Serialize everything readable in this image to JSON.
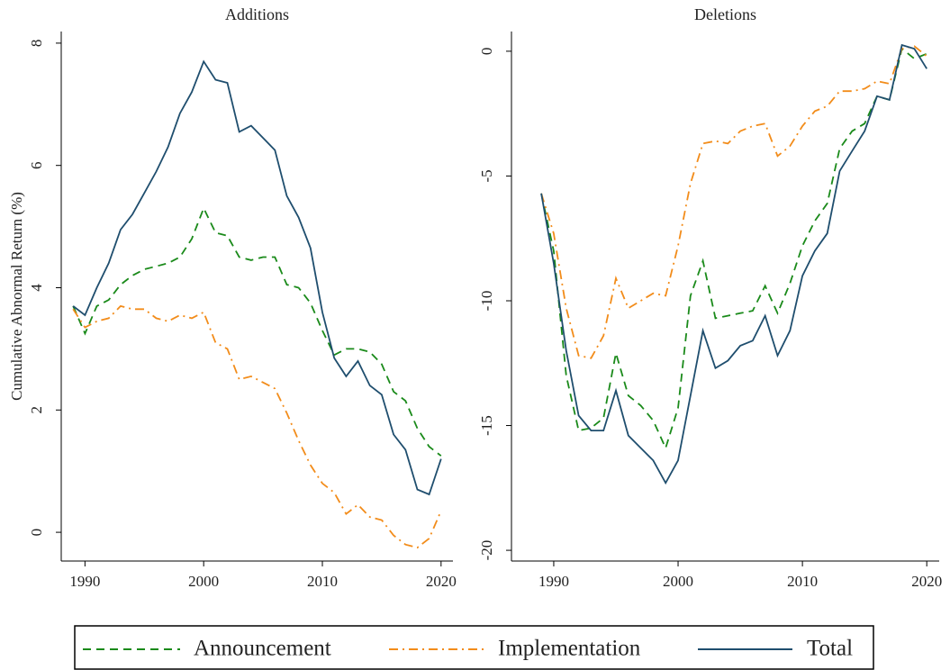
{
  "chart_data": [
    {
      "type": "line",
      "title": "Additions",
      "y_label": "Cumulative Abnormal Return (%)",
      "x": [
        1989,
        1990,
        1991,
        1992,
        1993,
        1994,
        1995,
        1996,
        1997,
        1998,
        1999,
        2000,
        2001,
        2002,
        2003,
        2004,
        2005,
        2006,
        2007,
        2008,
        2009,
        2010,
        2011,
        2012,
        2013,
        2014,
        2015,
        2016,
        2017,
        2018,
        2019,
        2020
      ],
      "xlim": [
        1988,
        2021
      ],
      "xticks": [
        1990,
        2000,
        2010,
        2020
      ],
      "ylim": [
        -0.47,
        8.19
      ],
      "yticks": [
        0,
        2,
        4,
        6,
        8
      ],
      "series": [
        {
          "name": "Announcement",
          "color": "#1a8a1a",
          "line_style": "dashed",
          "values": [
            3.7,
            3.25,
            3.7,
            3.8,
            4.05,
            4.2,
            4.3,
            4.35,
            4.4,
            4.5,
            4.8,
            5.3,
            4.9,
            4.85,
            4.5,
            4.45,
            4.5,
            4.5,
            4.05,
            4.0,
            3.75,
            3.3,
            2.9,
            3.0,
            3.0,
            2.95,
            2.75,
            2.3,
            2.15,
            1.7,
            1.4,
            1.25
          ]
        },
        {
          "name": "Implementation",
          "color": "#f28c1a",
          "line_style": "dashdot",
          "values": [
            3.65,
            3.35,
            3.45,
            3.5,
            3.7,
            3.65,
            3.65,
            3.5,
            3.45,
            3.55,
            3.5,
            3.6,
            3.1,
            3.0,
            2.5,
            2.55,
            2.45,
            2.35,
            1.95,
            1.5,
            1.1,
            0.8,
            0.65,
            0.3,
            0.45,
            0.25,
            0.2,
            -0.05,
            -0.2,
            -0.25,
            -0.1,
            0.35
          ]
        },
        {
          "name": "Total",
          "color": "#1f4e6e",
          "line_style": "solid",
          "values": [
            3.7,
            3.55,
            4.0,
            4.4,
            4.95,
            5.2,
            5.55,
            5.9,
            6.3,
            6.85,
            7.2,
            7.7,
            7.4,
            7.35,
            6.55,
            6.65,
            6.45,
            6.25,
            5.5,
            5.15,
            4.65,
            3.6,
            2.85,
            2.55,
            2.8,
            2.4,
            2.25,
            1.6,
            1.35,
            0.7,
            0.62,
            1.2
          ]
        }
      ]
    },
    {
      "type": "line",
      "title": "Deletions",
      "x": [
        1989,
        1990,
        1991,
        1992,
        1993,
        1994,
        1995,
        1996,
        1997,
        1998,
        1999,
        2000,
        2001,
        2002,
        2003,
        2004,
        2005,
        2006,
        2007,
        2008,
        2009,
        2010,
        2011,
        2012,
        2013,
        2014,
        2015,
        2016,
        2017,
        2018,
        2019,
        2020
      ],
      "xlim": [
        1986.6,
        2021
      ],
      "xticks": [
        1990,
        2000,
        2010,
        2020
      ],
      "ylim": [
        -20.43,
        0.79
      ],
      "yticks": [
        -20,
        -15,
        -10,
        -5,
        0
      ],
      "series": [
        {
          "name": "Announcement",
          "color": "#1a8a1a",
          "line_style": "dashed",
          "values": [
            -5.7,
            -8,
            -13,
            -15.2,
            -15.1,
            -14.7,
            -12.1,
            -13.8,
            -14.2,
            -14.8,
            -15.9,
            -14.3,
            -9.8,
            -8.4,
            -10.7,
            -10.6,
            -10.5,
            -10.4,
            -9.4,
            -10.5,
            -9.3,
            -7.8,
            -6.8,
            -6.1,
            -3.9,
            -3.2,
            -2.9,
            -1.8,
            -1.95,
            0.1,
            -0.3,
            -0.1
          ]
        },
        {
          "name": "Implementation",
          "color": "#f28c1a",
          "line_style": "dashdot",
          "values": [
            -5.7,
            -7.3,
            -10.3,
            -12.2,
            -12.3,
            -11.4,
            -9.1,
            -10.3,
            -10.0,
            -9.7,
            -9.8,
            -7.8,
            -5.3,
            -3.7,
            -3.6,
            -3.7,
            -3.2,
            -3.0,
            -2.9,
            -4.2,
            -3.8,
            -3.0,
            -2.4,
            -2.2,
            -1.6,
            -1.6,
            -1.5,
            -1.2,
            -1.3,
            0.1,
            0.2,
            -0.2
          ]
        },
        {
          "name": "Total",
          "color": "#1f4e6e",
          "line_style": "solid",
          "values": [
            -5.7,
            -8.5,
            -12,
            -14.6,
            -15.2,
            -15.2,
            -13.6,
            -15.4,
            -15.9,
            -16.4,
            -17.3,
            -16.4,
            -13.8,
            -11.2,
            -12.7,
            -12.4,
            -11.8,
            -11.6,
            -10.6,
            -12.2,
            -11.2,
            -9.0,
            -8.0,
            -7.3,
            -4.8,
            -4.0,
            -3.2,
            -1.8,
            -1.95,
            0.25,
            0.1,
            -0.7
          ]
        }
      ]
    }
  ]
}
